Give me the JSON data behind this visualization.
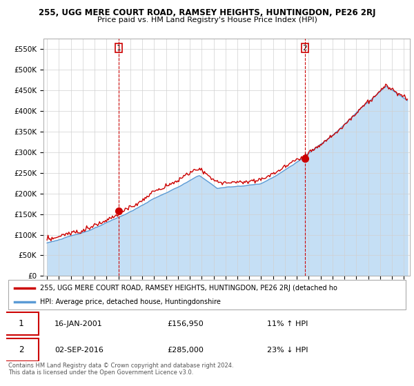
{
  "title": "255, UGG MERE COURT ROAD, RAMSEY HEIGHTS, HUNTINGDON, PE26 2RJ",
  "subtitle": "Price paid vs. HM Land Registry's House Price Index (HPI)",
  "legend_line1": "255, UGG MERE COURT ROAD, RAMSEY HEIGHTS, HUNTINGDON, PE26 2RJ (detached ho",
  "legend_line2": "HPI: Average price, detached house, Huntingdonshire",
  "note1": "Contains HM Land Registry data © Crown copyright and database right 2024.",
  "note2": "This data is licensed under the Open Government Licence v3.0.",
  "marker1_label": "1",
  "marker1_date": "16-JAN-2001",
  "marker1_price": "£156,950",
  "marker1_hpi": "11% ↑ HPI",
  "marker2_label": "2",
  "marker2_date": "02-SEP-2016",
  "marker2_price": "£285,000",
  "marker2_hpi": "23% ↓ HPI",
  "hpi_color": "#5b9bd5",
  "hpi_fill_color": "#c5dff5",
  "price_color": "#cc0000",
  "background_color": "#ffffff",
  "grid_color": "#d0d0d0",
  "ylim": [
    0,
    575000
  ],
  "yticks": [
    0,
    50000,
    100000,
    150000,
    200000,
    250000,
    300000,
    350000,
    400000,
    450000,
    500000,
    550000
  ],
  "xlim_start": 1994.7,
  "xlim_end": 2025.5,
  "t1_year": 2001.04,
  "t2_year": 2016.67,
  "sale1_price": 156950,
  "sale2_price": 285000
}
